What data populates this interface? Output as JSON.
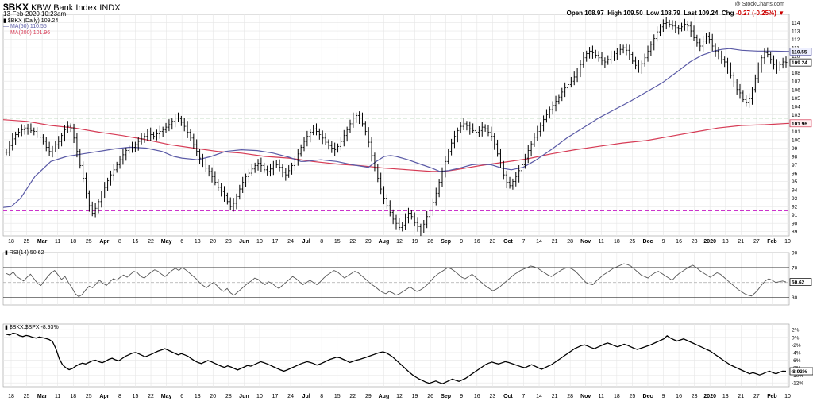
{
  "header": {
    "ticker": "$BKX",
    "name": "KBW Bank Index INDX",
    "date": "13-Feb-2020 10:23am",
    "legend_price": "$BKX (Daily) 109.24",
    "legend_ma50": "MA(50) 110.55",
    "legend_ma200": "MA(200) 101.96",
    "ohlc_open_label": "Open",
    "ohlc_open": "108.97",
    "ohlc_high_label": "High",
    "ohlc_high": "109.50",
    "ohlc_low_label": "Low",
    "ohlc_low": "108.79",
    "ohlc_last_label": "Last",
    "ohlc_last": "109.24",
    "ohlc_chg_label": "Chg",
    "ohlc_chg": "-0.27 (-0.25%)",
    "brand": "@ StockCharts.com"
  },
  "chart_data": [
    {
      "type": "line",
      "name": "price",
      "ylim": [
        88.5,
        115
      ],
      "y_ticks": [
        89,
        90,
        91,
        92,
        93,
        94,
        95,
        96,
        97,
        98,
        99,
        100,
        101,
        102,
        103,
        104,
        105,
        106,
        107,
        108,
        109,
        110,
        111,
        112,
        113,
        114
      ],
      "x_labels": [
        "18",
        "25",
        "Mar",
        "11",
        "18",
        "25",
        "Apr",
        "8",
        "15",
        "22",
        "May",
        "6",
        "13",
        "20",
        "28",
        "Jun",
        "10",
        "17",
        "24",
        "Jul",
        "8",
        "15",
        "22",
        "29",
        "Aug",
        "12",
        "19",
        "26",
        "Sep",
        "9",
        "16",
        "23",
        "Oct",
        "7",
        "14",
        "21",
        "28",
        "Nov",
        "11",
        "18",
        "25",
        "Dec",
        "9",
        "16",
        "23",
        "2020",
        "13",
        "21",
        "27",
        "Feb",
        "10"
      ],
      "x_bold": [
        "Mar",
        "Apr",
        "May",
        "Jun",
        "Jul",
        "Aug",
        "Sep",
        "Oct",
        "Nov",
        "Dec",
        "2020",
        "Feb"
      ],
      "closes": [
        98.5,
        99.3,
        100.1,
        100.6,
        100.9,
        101.2,
        101.4,
        101.3,
        101.1,
        101.0,
        100.8,
        100.3,
        99.8,
        99.1,
        98.6,
        98.9,
        99.4,
        99.8,
        100.5,
        101.2,
        101.6,
        101.4,
        100.2,
        98.6,
        96.9,
        95.4,
        93.6,
        92.1,
        91.2,
        91.8,
        92.6,
        93.4,
        94.3,
        95.1,
        95.8,
        96.4,
        97.0,
        97.6,
        98.2,
        98.7,
        98.9,
        99.1,
        99.4,
        99.8,
        100.1,
        100.4,
        100.8,
        100.6,
        100.4,
        100.7,
        101.0,
        101.2,
        101.5,
        101.8,
        102.2,
        102.6,
        102.5,
        102.1,
        101.6,
        100.9,
        100.2,
        99.4,
        98.6,
        97.8,
        97.1,
        96.6,
        96.2,
        95.6,
        94.9,
        94.3,
        93.8,
        93.3,
        92.6,
        92.0,
        92.4,
        93.2,
        94.1,
        94.9,
        95.6,
        96.0,
        96.5,
        96.9,
        97.2,
        96.9,
        96.4,
        96.2,
        96.5,
        97.1,
        97.0,
        96.7,
        96.1,
        95.8,
        96.3,
        96.9,
        97.6,
        98.3,
        99.1,
        99.8,
        100.4,
        100.9,
        101.3,
        101.0,
        100.6,
        100.2,
        99.7,
        99.3,
        99.0,
        98.8,
        99.2,
        99.8,
        100.5,
        101.2,
        101.9,
        102.6,
        102.9,
        102.6,
        101.9,
        101.0,
        99.7,
        98.1,
        96.6,
        95.4,
        94.1,
        93.0,
        92.1,
        91.3,
        90.5,
        90.0,
        89.5,
        89.8,
        90.7,
        91.2,
        90.8,
        90.1,
        89.6,
        89.2,
        89.9,
        90.8,
        91.6,
        92.5,
        93.6,
        94.9,
        96.2,
        97.4,
        98.6,
        99.6,
        100.4,
        101.1,
        101.6,
        101.9,
        101.7,
        101.3,
        101.1,
        100.9,
        101.1,
        101.5,
        101.3,
        100.9,
        100.4,
        99.5,
        98.3,
        97.1,
        95.8,
        94.9,
        94.5,
        95.0,
        95.6,
        96.3,
        97.0,
        97.8,
        98.7,
        99.5,
        100.3,
        101.0,
        101.7,
        102.4,
        103.0,
        103.6,
        104.1,
        104.6,
        105.1,
        105.7,
        106.2,
        106.6,
        107.0,
        107.5,
        108.2,
        109.0,
        109.8,
        110.3,
        110.6,
        110.4,
        110.1,
        109.8,
        109.5,
        109.3,
        109.6,
        110.0,
        110.3,
        110.5,
        110.8,
        111.0,
        110.7,
        110.2,
        109.4,
        108.9,
        108.6,
        109.1,
        109.8,
        110.6,
        111.4,
        112.1,
        112.9,
        113.5,
        113.9,
        114.0,
        113.8,
        113.6,
        113.4,
        113.3,
        113.5,
        113.8,
        113.6,
        113.0,
        112.2,
        111.6,
        111.2,
        111.8,
        112.4,
        112.0,
        111.2,
        110.6,
        110.0,
        109.6,
        109.3,
        108.6,
        107.7,
        106.8,
        106.0,
        105.6,
        104.8,
        104.4,
        104.9,
        106.0,
        107.3,
        108.6,
        109.8,
        110.4,
        110.2,
        109.6,
        109.0,
        108.6,
        109.0,
        109.3,
        109.24
      ],
      "ma50_points": [
        [
          0,
          91.9
        ],
        [
          10,
          92.0
        ],
        [
          22,
          93.0
        ],
        [
          40,
          95.6
        ],
        [
          60,
          97.4
        ],
        [
          80,
          98.0
        ],
        [
          100,
          98.3
        ],
        [
          120,
          98.6
        ],
        [
          140,
          98.9
        ],
        [
          160,
          99.1
        ],
        [
          180,
          99.0
        ],
        [
          200,
          98.6
        ],
        [
          215,
          98.0
        ],
        [
          225,
          97.8
        ],
        [
          245,
          97.6
        ],
        [
          262,
          98.0
        ],
        [
          280,
          98.6
        ],
        [
          300,
          98.8
        ],
        [
          320,
          98.7
        ],
        [
          340,
          98.4
        ],
        [
          360,
          97.9
        ],
        [
          375,
          97.4
        ],
        [
          380,
          97.4
        ],
        [
          400,
          97.6
        ],
        [
          420,
          97.4
        ],
        [
          440,
          97.0
        ],
        [
          460,
          96.7
        ],
        [
          470,
          97.4
        ],
        [
          480,
          98.0
        ],
        [
          488,
          98.1
        ],
        [
          495,
          98.0
        ],
        [
          510,
          97.6
        ],
        [
          525,
          97.1
        ],
        [
          540,
          96.6
        ],
        [
          550,
          96.2
        ],
        [
          560,
          96.3
        ],
        [
          575,
          96.6
        ],
        [
          590,
          97.0
        ],
        [
          600,
          97.1
        ],
        [
          615,
          97.0
        ],
        [
          628,
          96.6
        ],
        [
          640,
          96.4
        ],
        [
          655,
          96.7
        ],
        [
          670,
          97.5
        ],
        [
          690,
          98.8
        ],
        [
          710,
          100.2
        ],
        [
          730,
          101.4
        ],
        [
          750,
          102.6
        ],
        [
          770,
          103.6
        ],
        [
          790,
          104.6
        ],
        [
          810,
          105.7
        ],
        [
          830,
          106.8
        ],
        [
          850,
          108.2
        ],
        [
          865,
          109.3
        ],
        [
          880,
          110.1
        ],
        [
          895,
          110.6
        ],
        [
          905,
          110.8
        ],
        [
          915,
          110.9
        ],
        [
          930,
          110.7
        ],
        [
          950,
          110.6
        ],
        [
          970,
          110.6
        ],
        [
          990,
          110.55
        ]
      ],
      "ma200_points": [
        [
          0,
          102.4
        ],
        [
          30,
          102.2
        ],
        [
          60,
          101.7
        ],
        [
          90,
          101.4
        ],
        [
          120,
          100.9
        ],
        [
          150,
          100.5
        ],
        [
          180,
          100.0
        ],
        [
          210,
          99.4
        ],
        [
          240,
          99.0
        ],
        [
          270,
          98.6
        ],
        [
          300,
          98.4
        ],
        [
          330,
          98.0
        ],
        [
          360,
          97.8
        ],
        [
          390,
          97.4
        ],
        [
          420,
          97.1
        ],
        [
          450,
          96.9
        ],
        [
          480,
          96.6
        ],
        [
          510,
          96.4
        ],
        [
          540,
          96.2
        ],
        [
          555,
          96.2
        ],
        [
          570,
          96.4
        ],
        [
          600,
          96.9
        ],
        [
          630,
          97.3
        ],
        [
          660,
          97.7
        ],
        [
          690,
          98.3
        ],
        [
          720,
          98.8
        ],
        [
          750,
          99.2
        ],
        [
          780,
          99.6
        ],
        [
          810,
          99.9
        ],
        [
          840,
          100.4
        ],
        [
          870,
          100.9
        ],
        [
          900,
          101.4
        ],
        [
          930,
          101.7
        ],
        [
          960,
          101.8
        ],
        [
          990,
          101.96
        ]
      ],
      "support_line": 91.5,
      "resistance_line": 102.6,
      "last_label": "109.24",
      "ma50_label": "110.55",
      "ma200_label": "101.96"
    },
    {
      "type": "line",
      "name": "RSI(14)",
      "legend": "RSI(14) 50.62",
      "ylim": [
        20,
        90
      ],
      "y_ticks": [
        30,
        50,
        70,
        90
      ],
      "guides": [
        30,
        50,
        70
      ],
      "last_label": "50.62",
      "values": [
        62,
        60,
        64,
        58,
        55,
        52,
        57,
        61,
        55,
        49,
        46,
        52,
        58,
        63,
        66,
        60,
        54,
        58,
        50,
        43,
        35,
        31,
        34,
        40,
        45,
        43,
        48,
        53,
        49,
        46,
        51,
        55,
        53,
        57,
        60,
        57,
        61,
        65,
        63,
        58,
        56,
        60,
        64,
        67,
        65,
        61,
        58,
        62,
        66,
        69,
        66,
        70,
        67,
        63,
        59,
        55,
        50,
        46,
        43,
        47,
        50,
        46,
        41,
        38,
        42,
        36,
        33,
        37,
        41,
        45,
        49,
        52,
        56,
        54,
        50,
        47,
        51,
        49,
        45,
        42,
        46,
        50,
        54,
        58,
        55,
        51,
        47,
        50,
        53,
        50,
        47,
        51,
        56,
        60,
        63,
        66,
        64,
        60,
        56,
        59,
        62,
        65,
        63,
        59,
        55,
        51,
        47,
        44,
        40,
        37,
        35,
        38,
        36,
        33,
        35,
        38,
        41,
        44,
        41,
        38,
        40,
        43,
        47,
        52,
        57,
        61,
        64,
        67,
        70,
        68,
        65,
        61,
        57,
        55,
        58,
        61,
        57,
        53,
        49,
        45,
        42,
        39,
        41,
        44,
        48,
        52,
        56,
        60,
        63,
        66,
        68,
        70,
        72,
        71,
        69,
        66,
        63,
        60,
        58,
        61,
        64,
        67,
        69,
        70,
        68,
        65,
        60,
        55,
        50,
        48,
        47,
        52,
        56,
        60,
        63,
        66,
        69,
        71,
        73,
        75,
        74,
        72,
        68,
        64,
        60,
        58,
        56,
        60,
        63,
        65,
        62,
        59,
        56,
        53,
        58,
        62,
        65,
        68,
        71,
        73,
        70,
        66,
        63,
        60,
        57,
        60,
        63,
        61,
        57,
        53,
        49,
        45,
        41,
        38,
        35,
        33,
        32,
        36,
        41,
        47,
        52,
        55,
        53,
        50,
        51,
        52,
        50.62
      ]
    },
    {
      "type": "line",
      "name": "$BKX:$SPX",
      "legend": "$BKX:$SPX -8.93%",
      "ylim": [
        -13,
        3.5
      ],
      "y_ticks": [
        2,
        0,
        -2,
        -4,
        -6,
        -8,
        -10,
        -12
      ],
      "y_tick_labels": [
        "2%",
        "0%",
        "-2%",
        "-4%",
        "-6%",
        "-8%",
        "-10%",
        "-12%"
      ],
      "last_label": "-8.93%",
      "values": [
        0.8,
        0.6,
        1.1,
        0.9,
        0.4,
        0.2,
        0.5,
        0.3,
        0.0,
        -0.2,
        0.1,
        -0.1,
        -0.3,
        -0.6,
        -1.2,
        -3.0,
        -5.6,
        -7.2,
        -8.0,
        -8.5,
        -8.2,
        -7.6,
        -7.1,
        -6.8,
        -7.0,
        -6.6,
        -6.2,
        -6.0,
        -6.4,
        -6.7,
        -6.3,
        -5.8,
        -5.5,
        -5.9,
        -6.2,
        -5.6,
        -5.0,
        -4.6,
        -4.2,
        -4.0,
        -4.3,
        -4.7,
        -5.1,
        -4.8,
        -4.4,
        -4.0,
        -3.6,
        -3.3,
        -3.0,
        -3.4,
        -3.8,
        -4.2,
        -4.6,
        -4.3,
        -4.6,
        -5.0,
        -5.6,
        -6.2,
        -6.6,
        -6.9,
        -6.5,
        -6.1,
        -6.4,
        -6.8,
        -7.2,
        -7.6,
        -7.9,
        -7.5,
        -7.8,
        -8.2,
        -8.6,
        -8.2,
        -7.8,
        -7.4,
        -7.6,
        -7.2,
        -6.8,
        -6.4,
        -6.7,
        -7.0,
        -7.4,
        -7.8,
        -8.2,
        -8.6,
        -8.9,
        -8.6,
        -8.2,
        -7.8,
        -7.4,
        -7.0,
        -6.7,
        -6.4,
        -6.6,
        -6.9,
        -7.3,
        -7.0,
        -6.6,
        -6.2,
        -5.8,
        -5.5,
        -5.2,
        -5.4,
        -5.8,
        -6.2,
        -6.6,
        -6.3,
        -6.0,
        -5.8,
        -5.5,
        -5.2,
        -4.9,
        -4.6,
        -4.3,
        -4.0,
        -3.8,
        -4.1,
        -4.6,
        -5.2,
        -6.0,
        -6.8,
        -7.6,
        -8.4,
        -9.2,
        -9.9,
        -10.5,
        -11.0,
        -11.4,
        -11.8,
        -12.1,
        -11.8,
        -11.5,
        -11.9,
        -12.2,
        -11.8,
        -11.4,
        -11.0,
        -11.3,
        -11.6,
        -11.2,
        -10.8,
        -10.2,
        -9.6,
        -9.0,
        -8.4,
        -7.8,
        -7.2,
        -6.8,
        -6.5,
        -6.8,
        -7.0,
        -6.7,
        -6.4,
        -6.6,
        -6.9,
        -7.2,
        -7.5,
        -7.8,
        -8.0,
        -7.6,
        -7.2,
        -7.6,
        -8.0,
        -8.4,
        -8.0,
        -7.6,
        -7.2,
        -6.6,
        -6.0,
        -5.4,
        -4.8,
        -4.2,
        -3.6,
        -3.0,
        -2.6,
        -2.2,
        -2.0,
        -2.3,
        -2.7,
        -3.0,
        -2.6,
        -2.2,
        -1.8,
        -1.5,
        -1.8,
        -2.2,
        -2.5,
        -2.2,
        -1.8,
        -2.1,
        -2.5,
        -2.9,
        -3.2,
        -2.9,
        -2.6,
        -2.3,
        -2.0,
        -1.6,
        -1.2,
        -0.8,
        -0.4,
        0.4,
        -0.2,
        -0.6,
        -1.0,
        -0.7,
        -0.4,
        -0.8,
        -1.2,
        -1.6,
        -2.0,
        -2.4,
        -2.8,
        -3.2,
        -3.6,
        -4.2,
        -4.8,
        -5.4,
        -6.0,
        -6.6,
        -7.2,
        -7.6,
        -8.0,
        -8.4,
        -8.8,
        -9.2,
        -9.6,
        -9.3,
        -9.6,
        -9.9,
        -9.6,
        -9.2,
        -8.9,
        -9.3,
        -9.6,
        -9.2,
        -8.9,
        -8.93
      ]
    }
  ],
  "colors": {
    "price": "#000000",
    "ma50": "#5a5aa6",
    "ma200": "#d63b55",
    "support": "#cc33cc",
    "resistance": "#1a7a1a",
    "grid": "#e6e6e6",
    "axis": "#999999",
    "ma50_tag": "#eef0ff",
    "ma200_tag": "#ffeef0"
  }
}
